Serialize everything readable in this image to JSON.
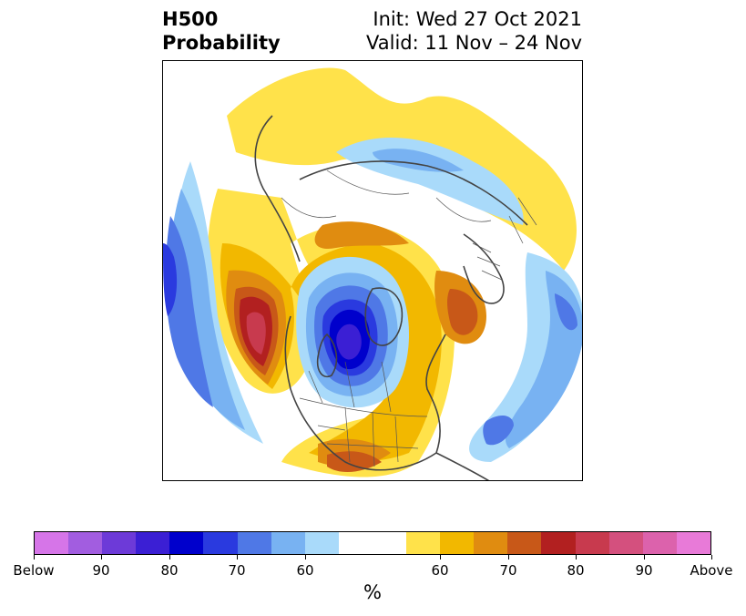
{
  "title": {
    "left_line1": "H500",
    "left_line2": "Probability",
    "right_line1": "Init: Wed 27 Oct 2021",
    "right_line2": "Valid: 11 Nov – 24 Nov"
  },
  "map": {
    "projection": "north-polar-stereographic",
    "features": [
      "coastlines",
      "country-borders",
      "us-state-borders"
    ]
  },
  "colorbar": {
    "unit": "%",
    "colors": [
      "#d675e8",
      "#a25de0",
      "#6d3ad8",
      "#3b1fd4",
      "#0000cc",
      "#2a3adf",
      "#4f78e6",
      "#78b2f2",
      "#a9dafa",
      "#ffffff",
      "#ffffff",
      "#ffe24a",
      "#f2b800",
      "#e08c10",
      "#c85818",
      "#b22020",
      "#c83a4e",
      "#d4507e",
      "#dc62ac",
      "#e87ad8"
    ],
    "labels": [
      {
        "text": "Below",
        "index": 0
      },
      {
        "text": "90",
        "index": 2
      },
      {
        "text": "80",
        "index": 4
      },
      {
        "text": "70",
        "index": 6
      },
      {
        "text": "60",
        "index": 8
      },
      {
        "text": "60",
        "index": 12
      },
      {
        "text": "70",
        "index": 14
      },
      {
        "text": "80",
        "index": 16
      },
      {
        "text": "90",
        "index": 18
      },
      {
        "text": "Above",
        "index": 20
      }
    ]
  }
}
